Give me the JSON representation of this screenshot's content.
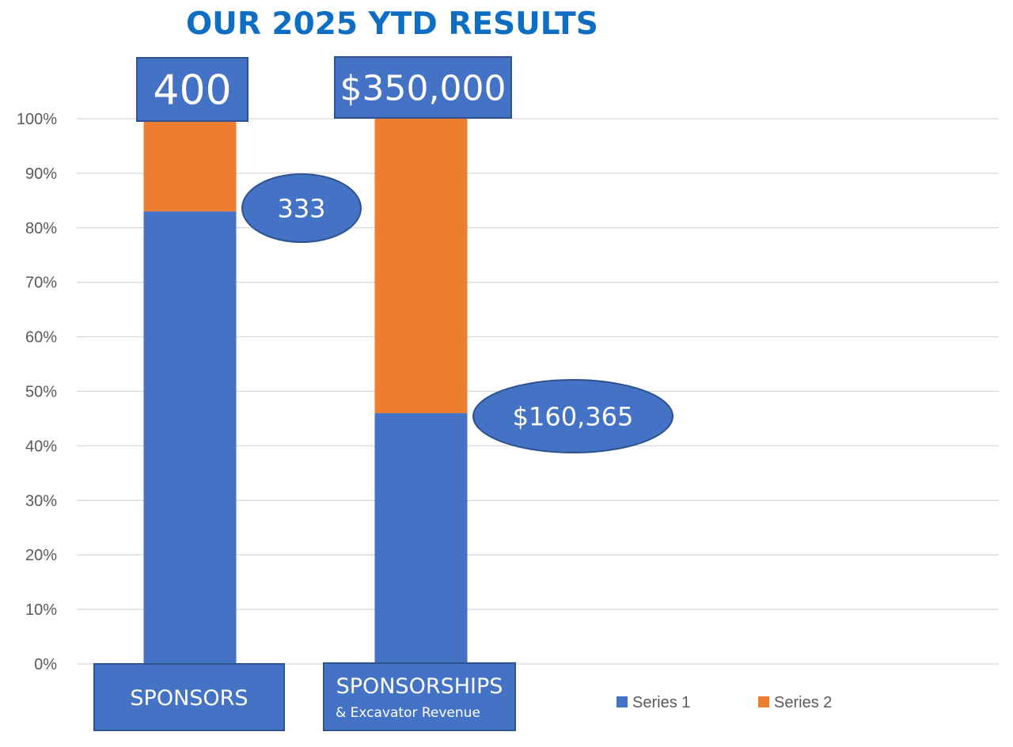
{
  "title": "OUR 2025 YTD RESULTS",
  "colors": {
    "title": "#0E6EC4",
    "series1": "#4472C4",
    "series2": "#ED7D31",
    "callout_fill": "#4472C4",
    "callout_stroke": "#2F528F",
    "grid": "#D9D9D9",
    "tick_text": "#595959"
  },
  "chart_data": {
    "type": "bar",
    "stacked": true,
    "percent_stacked": true,
    "categories": [
      "SPONSORS",
      "SPONSORSHIPS"
    ],
    "category_subtitles": [
      "",
      "& Excavator Revenue"
    ],
    "series": [
      {
        "name": "Series 1",
        "values": [
          83,
          46
        ]
      },
      {
        "name": "Series 2",
        "values": [
          17,
          54
        ]
      }
    ],
    "ylim": [
      0,
      100
    ],
    "yticks": [
      "0%",
      "10%",
      "20%",
      "30%",
      "40%",
      "50%",
      "60%",
      "70%",
      "80%",
      "90%",
      "100%"
    ],
    "grid": true,
    "legend": "bottom-right",
    "annotations": {
      "targets": [
        "400",
        "$350,000"
      ],
      "actuals": [
        "333",
        "$160,365"
      ]
    }
  }
}
